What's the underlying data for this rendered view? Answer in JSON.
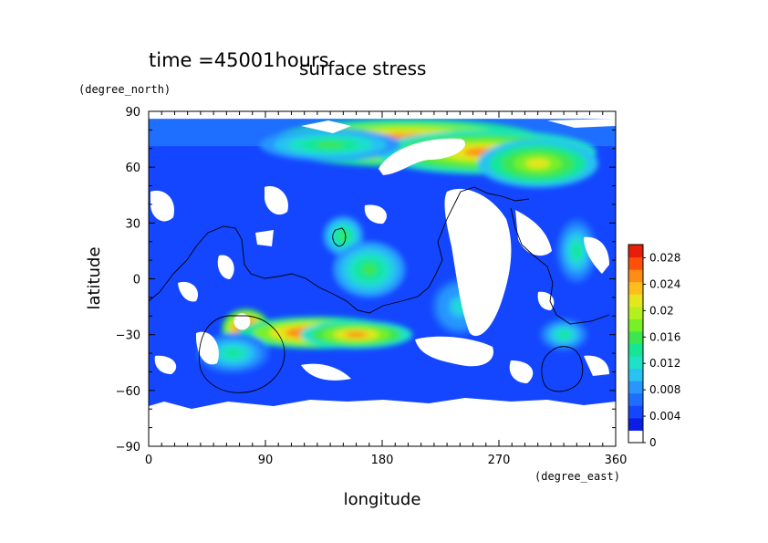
{
  "chart_data": {
    "type": "heatmap",
    "title": "surface stress",
    "subtitle": "time =45001hours",
    "xlabel": "longitude",
    "ylabel": "latitude",
    "x_units": "(degree_east)",
    "y_units": "(degree_north)",
    "xlim": [
      0,
      360
    ],
    "ylim": [
      -90,
      90
    ],
    "x_ticks": [
      0,
      90,
      180,
      270,
      360
    ],
    "y_ticks": [
      90,
      60,
      30,
      0,
      -30,
      -60,
      -90
    ],
    "x_tick_labels": [
      "0",
      "90",
      "180",
      "270",
      "360"
    ],
    "y_tick_labels": [
      "90",
      "60",
      "30",
      "0",
      "−30",
      "−60",
      "−90"
    ],
    "colorbar": {
      "min": 0,
      "max": 0.03,
      "tick_values": [
        0,
        0.004,
        0.008,
        0.012,
        0.016,
        0.02,
        0.024,
        0.028
      ],
      "tick_labels": [
        "0",
        "0.004",
        "0.008",
        "0.012",
        "0.016",
        "0.02",
        "0.024",
        "0.028"
      ],
      "colors": [
        "#ffffff",
        "#0a1ee6",
        "#1446ff",
        "#1e6eff",
        "#2896ff",
        "#28c3f0",
        "#1ee1c8",
        "#14e696",
        "#3ce650",
        "#78f028",
        "#b4f01e",
        "#e6e61e",
        "#ffbe1e",
        "#ff8c14",
        "#ff500a",
        "#e61e0a"
      ]
    },
    "features": [
      {
        "lon": 200,
        "lat": 73,
        "value": 0.028
      },
      {
        "lon": 260,
        "lat": 68,
        "value": 0.024
      },
      {
        "lon": 300,
        "lat": 62,
        "value": 0.02
      },
      {
        "lon": 140,
        "lat": 72,
        "value": 0.014
      },
      {
        "lon": 75,
        "lat": -27,
        "value": 0.03
      },
      {
        "lon": 130,
        "lat": -29,
        "value": 0.028
      },
      {
        "lon": 160,
        "lat": -30,
        "value": 0.024
      },
      {
        "lon": 65,
        "lat": -40,
        "value": 0.012
      },
      {
        "lon": 150,
        "lat": 23,
        "value": 0.014
      },
      {
        "lon": 170,
        "lat": 5,
        "value": 0.014
      },
      {
        "lon": 240,
        "lat": -15,
        "value": 0.01
      },
      {
        "lon": 330,
        "lat": 15,
        "value": 0.012
      },
      {
        "lon": 320,
        "lat": -30,
        "value": 0.012
      }
    ]
  }
}
